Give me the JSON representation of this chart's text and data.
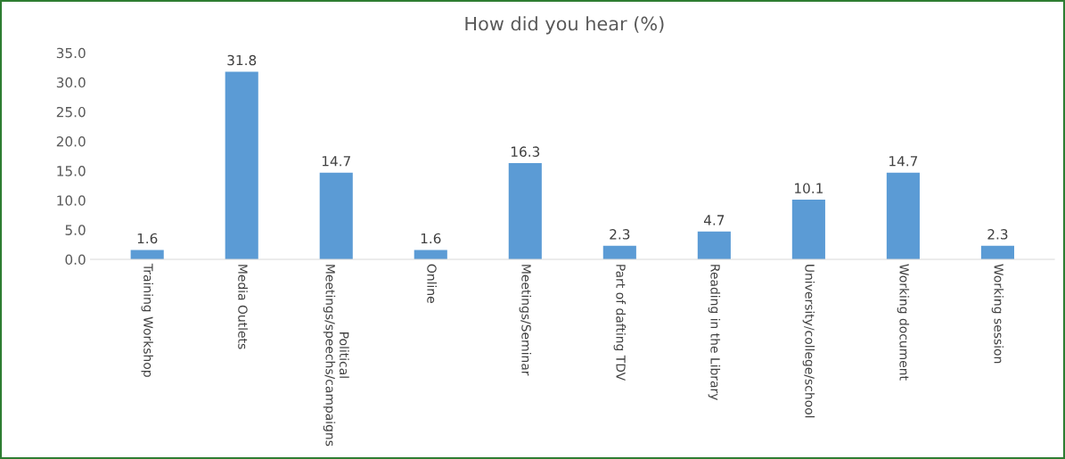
{
  "chart_data": {
    "type": "bar",
    "title": "How did you hear (%)",
    "categories": [
      "Training Workshop",
      "Media Outlets",
      "Political Meetings/speechs/campaigns",
      "Online",
      "Meetings/Seminar",
      "Part of dafting TDV",
      "Reading in the Library",
      "University/college/school",
      "Working document",
      "Working session"
    ],
    "values": [
      1.6,
      31.8,
      14.7,
      1.6,
      16.3,
      2.3,
      4.7,
      10.1,
      14.7,
      2.3
    ],
    "color": "#5b9bd5",
    "ylim": [
      0,
      35
    ],
    "yticks": [
      {
        "value": 0,
        "label": "0.0"
      },
      {
        "value": 5,
        "label": "5.0"
      },
      {
        "value": 10,
        "label": "10.0"
      },
      {
        "value": 15,
        "label": "15.0"
      },
      {
        "value": 20,
        "label": "20.0"
      },
      {
        "value": 25,
        "label": "25.0"
      },
      {
        "value": 30,
        "label": "30.0"
      },
      {
        "value": 35,
        "label": "35.0"
      }
    ],
    "data_labels": true,
    "grid": false,
    "legend": false
  }
}
